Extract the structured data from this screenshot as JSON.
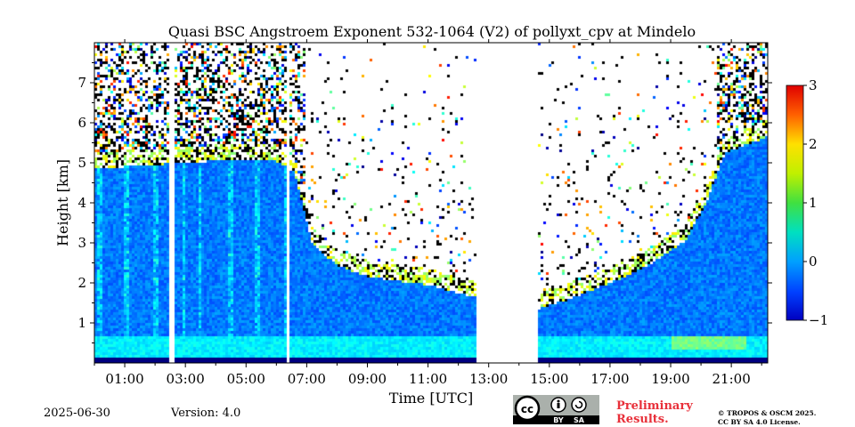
{
  "chart_data": {
    "type": "heatmap",
    "title": "Quasi BSC Angstroem Exponent 532-1064 (V2) of pollyxt_cpv at Mindelo",
    "xlabel": "Time [UTC]",
    "ylabel": "Height [km]",
    "xlim_hours": [
      0.0,
      22.2
    ],
    "ylim_km": [
      0.0,
      8.0
    ],
    "x_ticks": [
      "01:00",
      "03:00",
      "05:00",
      "07:00",
      "09:00",
      "11:00",
      "13:00",
      "15:00",
      "17:00",
      "19:00",
      "21:00"
    ],
    "y_ticks": [
      "1",
      "2",
      "3",
      "4",
      "5",
      "6",
      "7"
    ],
    "colorbar": {
      "min": -1,
      "max": 3,
      "ticks": [
        "−1",
        "0",
        "1",
        "2",
        "3"
      ],
      "colormap": "jet"
    },
    "data_gaps_hours": [
      [
        2.5,
        2.65
      ],
      [
        6.3,
        6.45
      ],
      [
        12.6,
        14.6
      ]
    ],
    "aerosol_layer_top_km": [
      {
        "t": 0.0,
        "h": 5.1
      },
      {
        "t": 2.0,
        "h": 5.2
      },
      {
        "t": 4.0,
        "h": 5.3
      },
      {
        "t": 6.0,
        "h": 5.3
      },
      {
        "t": 6.6,
        "h": 5.0
      },
      {
        "t": 7.2,
        "h": 3.2
      },
      {
        "t": 8.0,
        "h": 2.7
      },
      {
        "t": 9.0,
        "h": 2.4
      },
      {
        "t": 10.0,
        "h": 2.3
      },
      {
        "t": 11.0,
        "h": 2.2
      },
      {
        "t": 12.5,
        "h": 1.9
      },
      {
        "t": 14.6,
        "h": 1.6
      },
      {
        "t": 15.5,
        "h": 1.8
      },
      {
        "t": 16.5,
        "h": 2.1
      },
      {
        "t": 17.5,
        "h": 2.4
      },
      {
        "t": 18.5,
        "h": 2.8
      },
      {
        "t": 19.5,
        "h": 3.3
      },
      {
        "t": 20.2,
        "h": 4.3
      },
      {
        "t": 20.8,
        "h": 5.5
      },
      {
        "t": 22.2,
        "h": 5.9
      }
    ],
    "typical_values": {
      "boundary_layer": 0.3,
      "free_troposphere": -0.2,
      "layer_edges": 1.0
    }
  },
  "footer": {
    "date": "2025-06-30",
    "version": "Version: 4.0",
    "preliminary": [
      "Preliminary",
      "Results."
    ],
    "copyright": [
      "© TROPOS & OSCM 2025.",
      "CC BY SA 4.0 License."
    ],
    "license_badge": {
      "icon": "cc-by-sa-icon",
      "labels": [
        "BY",
        "SA"
      ]
    }
  }
}
